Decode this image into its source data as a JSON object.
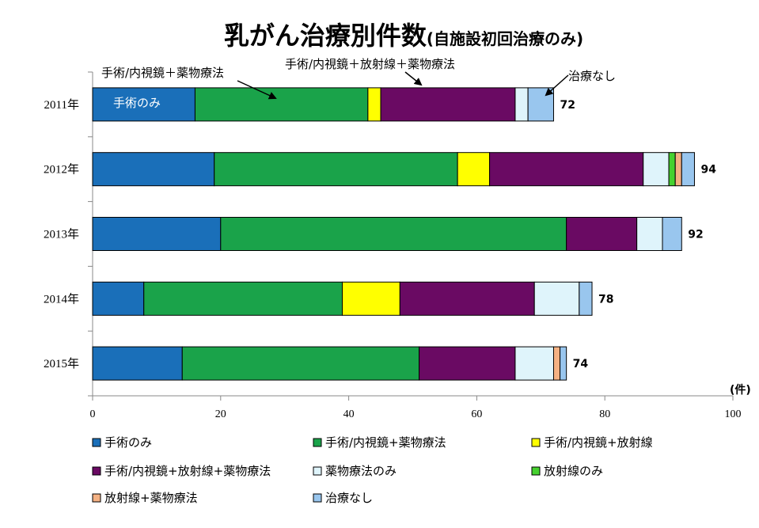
{
  "chart_data": {
    "type": "bar",
    "orientation": "horizontal",
    "stacked": true,
    "title": "乳がん治療別件数",
    "subtitle": "(自施設初回治療のみ)",
    "xlabel": "",
    "x_unit": "(件)",
    "ylabel": "",
    "xlim": [
      0,
      100
    ],
    "x_ticks": [
      "0",
      "20",
      "40",
      "60",
      "80",
      "100"
    ],
    "categories": [
      "2011年",
      "2012年",
      "2013年",
      "2014年",
      "2015年"
    ],
    "totals": [
      "72",
      "94",
      "92",
      "78",
      "74"
    ],
    "series": [
      {
        "name": "手術のみ",
        "color": "#1a6fb9",
        "values": [
          16,
          19,
          20,
          8,
          14
        ]
      },
      {
        "name": "手術/内視鏡+薬物療法",
        "color": "#1aa34a",
        "values": [
          27,
          38,
          54,
          31,
          37
        ]
      },
      {
        "name": "手術/内視鏡+放射線",
        "color": "#ffff00",
        "values": [
          2,
          5,
          0,
          9,
          0
        ]
      },
      {
        "name": "手術/内視鏡+放射線+薬物療法",
        "color": "#6a0a63",
        "values": [
          21,
          24,
          11,
          21,
          15
        ]
      },
      {
        "name": "薬物療法のみ",
        "color": "#dff4fb",
        "values": [
          2,
          4,
          4,
          7,
          6
        ]
      },
      {
        "name": "放射線のみ",
        "color": "#46d12f",
        "values": [
          0,
          1,
          0,
          0,
          0
        ]
      },
      {
        "name": "放射線+薬物療法",
        "color": "#f4b183",
        "values": [
          0,
          1,
          0,
          0,
          1
        ]
      },
      {
        "name": "治療なし",
        "color": "#99c6ee",
        "values": [
          4,
          2,
          3,
          2,
          1
        ]
      }
    ],
    "annotations": {
      "surgery_only": "手術のみ",
      "surgery_drug": "手術/内視鏡＋薬物療法",
      "surgery_rad_drug": "手術/内視鏡＋放射線＋薬物療法",
      "no_treatment": "治療なし"
    },
    "legend_position": "bottom",
    "grid": false
  }
}
